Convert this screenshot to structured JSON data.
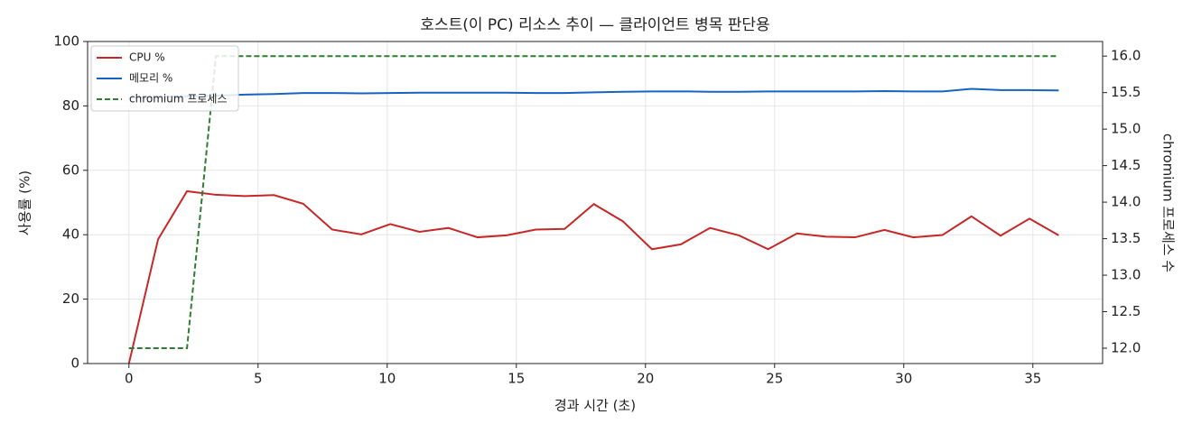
{
  "chart_data": {
    "type": "line",
    "title": "호스트(이 PC) 리소스 추이 — 클라이언트 병목 판단용",
    "x_label": "경과 시간 (초)",
    "y_label": "사용률 (%)",
    "y2_label": "chromium 프로세스 수",
    "x": [
      0,
      1.13,
      2.25,
      3.37,
      4.5,
      5.62,
      6.75,
      7.87,
      9,
      10.12,
      11.25,
      12.37,
      13.5,
      14.62,
      15.75,
      16.87,
      18,
      19.12,
      20.25,
      21.37,
      22.5,
      23.62,
      24.75,
      25.87,
      27,
      28.12,
      29.25,
      30.37,
      31.5,
      32.62,
      33.75,
      34.87,
      36
    ],
    "series": [
      {
        "name": "CPU %",
        "color": "#c62828",
        "dashed": false,
        "axis": "y",
        "values": [
          0,
          38.6,
          53.5,
          52.4,
          52.0,
          52.3,
          49.6,
          41.6,
          40.1,
          43.3,
          40.9,
          42.1,
          39.2,
          39.8,
          41.6,
          41.8,
          49.5,
          44.2,
          35.5,
          37.0,
          42.1,
          39.8,
          35.5,
          40.4,
          39.4,
          39.2,
          41.5,
          39.2,
          39.9,
          45.7,
          39.7,
          45.0,
          39.8
        ]
      },
      {
        "name": "메모리 %",
        "color": "#1565c0",
        "dashed": false,
        "axis": "y",
        "values": [
          82.5,
          82.8,
          83.0,
          83.2,
          83.5,
          83.7,
          84.0,
          84.0,
          83.9,
          84.0,
          84.1,
          84.1,
          84.1,
          84.1,
          84.0,
          84.0,
          84.2,
          84.4,
          84.5,
          84.5,
          84.4,
          84.4,
          84.5,
          84.5,
          84.5,
          84.5,
          84.6,
          84.5,
          84.5,
          85.3,
          84.9,
          84.9,
          84.8
        ]
      },
      {
        "name": "chromium 프로세스",
        "color": "#2e7d32",
        "dashed": true,
        "axis": "y2",
        "values": [
          12,
          12,
          12,
          16,
          16,
          16,
          16,
          16,
          16,
          16,
          16,
          16,
          16,
          16,
          16,
          16,
          16,
          16,
          16,
          16,
          16,
          16,
          16,
          16,
          16,
          16,
          16,
          16,
          16,
          16,
          16,
          16,
          16
        ]
      }
    ],
    "xlim": [
      -1.6,
      37.7
    ],
    "xticks": [
      0,
      5,
      10,
      15,
      20,
      25,
      30,
      35
    ],
    "ylim": [
      0,
      100
    ],
    "yticks": [
      0,
      20,
      40,
      60,
      80,
      100
    ],
    "y2lim": [
      11.79,
      16.2
    ],
    "y2ticks": [
      {
        "value": 12,
        "label": "12.0"
      },
      {
        "value": 12.5,
        "label": "12.5"
      },
      {
        "value": 13,
        "label": "13.0"
      },
      {
        "value": 13.5,
        "label": "13.5"
      },
      {
        "value": 14,
        "label": "14.0"
      },
      {
        "value": 14.5,
        "label": "14.5"
      },
      {
        "value": 15,
        "label": "15.0"
      },
      {
        "value": 15.5,
        "label": "15.5"
      },
      {
        "value": 16,
        "label": "16.0"
      }
    ],
    "grid": true,
    "legend": "upper-left"
  }
}
